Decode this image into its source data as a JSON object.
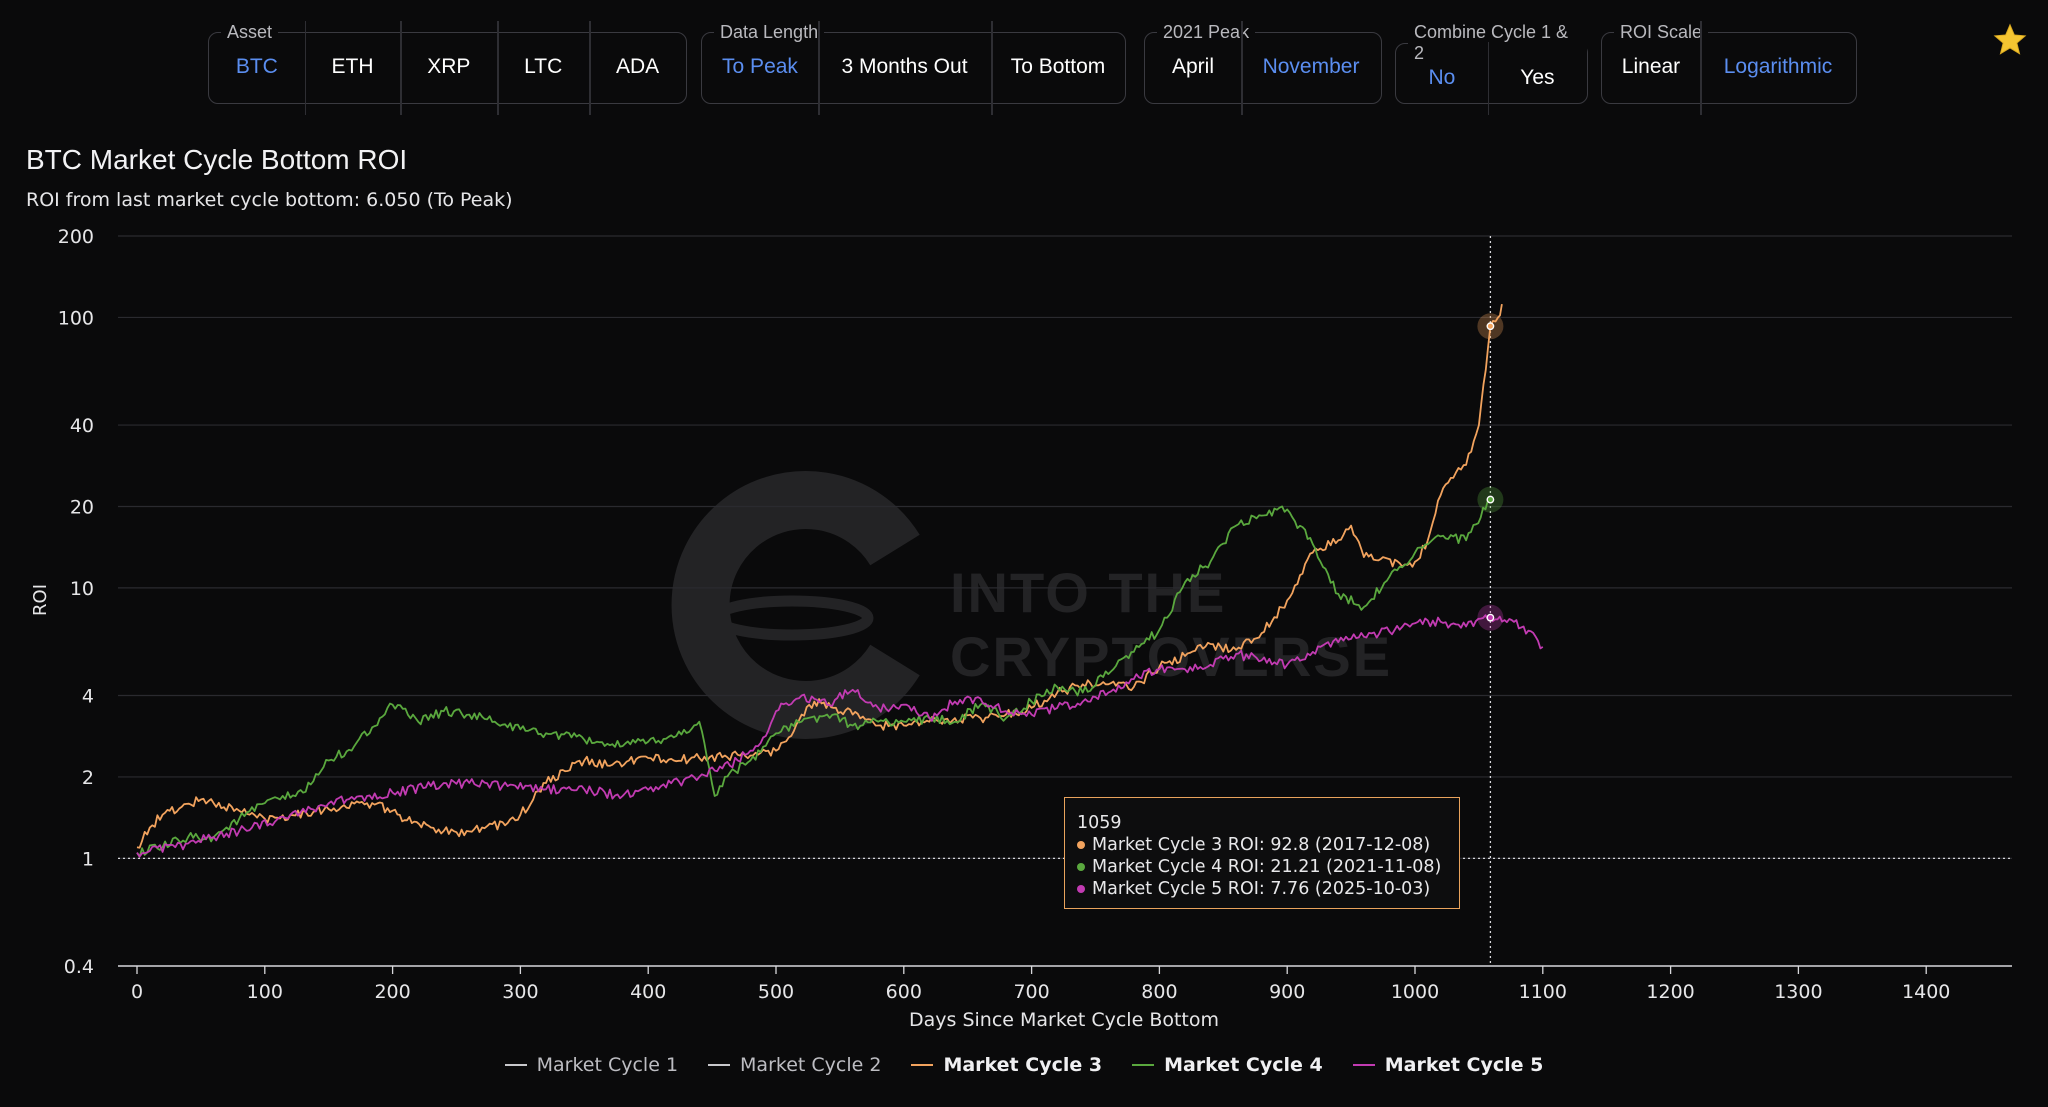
{
  "controls": {
    "groups": [
      {
        "legend": "Asset",
        "options": [
          "BTC",
          "ETH",
          "XRP",
          "LTC",
          "ADA"
        ],
        "selected": "BTC"
      },
      {
        "legend": "Data Length",
        "options": [
          "To Peak",
          "3 Months Out",
          "To Bottom"
        ],
        "selected": "To Peak"
      },
      {
        "legend": "2021 Peak",
        "options": [
          "April",
          "November"
        ],
        "selected": "November"
      },
      {
        "legend": "Combine Cycle 1 & 2",
        "options": [
          "No",
          "Yes"
        ],
        "selected": "No"
      },
      {
        "legend": "ROI Scale",
        "options": [
          "Linear",
          "Logarithmic"
        ],
        "selected": "Logarithmic"
      }
    ],
    "favorite_icon": "star-icon",
    "accent_color": "#5b8ef0"
  },
  "title": "BTC Market Cycle Bottom ROI",
  "subtitle": "ROI from last market cycle bottom: 6.050 (To Peak)",
  "watermark": "INTO THE CRYPTOVERSE",
  "tooltip": {
    "header": "1059",
    "rows": [
      {
        "text": "Market Cycle 3 ROI: 92.8 (2017-12-08)",
        "color": "#f2a35e"
      },
      {
        "text": "Market Cycle 4 ROI: 21.21 (2021-11-08)",
        "color": "#5aa83e"
      },
      {
        "text": "Market Cycle 5 ROI: 7.76 (2025-10-03)",
        "color": "#c23bb2"
      }
    ]
  },
  "chart_data": {
    "type": "line",
    "xlabel": "Days Since Market Cycle Bottom",
    "ylabel": "ROI",
    "yscale": "log",
    "xlim": [
      -10,
      1470
    ],
    "ylim": [
      0.4,
      200
    ],
    "xticks": [
      0,
      100,
      200,
      300,
      400,
      500,
      600,
      700,
      800,
      900,
      1000,
      1100,
      1200,
      1300,
      1400
    ],
    "yticks": [
      0.4,
      1,
      2,
      4,
      10,
      20,
      40,
      100,
      200
    ],
    "reference_line_y": 1,
    "crosshair_x": 1059,
    "grid": true,
    "legend_position": "bottom",
    "series": [
      {
        "name": "Market Cycle 1",
        "color": "#c8c8cc",
        "x": [],
        "y": [],
        "active": false
      },
      {
        "name": "Market Cycle 2",
        "color": "#c8c8cc",
        "x": [],
        "y": [],
        "active": false
      },
      {
        "name": "Market Cycle 3",
        "color": "#f2a35e",
        "active": true,
        "x": [
          0,
          10,
          20,
          35,
          50,
          60,
          80,
          100,
          120,
          140,
          160,
          180,
          200,
          215,
          230,
          250,
          270,
          290,
          300,
          310,
          320,
          335,
          350,
          370,
          385,
          400,
          420,
          440,
          460,
          480,
          500,
          510,
          520,
          530,
          545,
          560,
          580,
          600,
          620,
          640,
          660,
          680,
          700,
          720,
          740,
          760,
          780,
          800,
          820,
          840,
          860,
          880,
          900,
          920,
          940,
          950,
          960,
          975,
          990,
          1000,
          1010,
          1020,
          1030,
          1040,
          1050,
          1059,
          1065,
          1068
        ],
        "y": [
          1.1,
          1.3,
          1.45,
          1.55,
          1.65,
          1.6,
          1.5,
          1.4,
          1.45,
          1.5,
          1.55,
          1.6,
          1.5,
          1.35,
          1.3,
          1.25,
          1.3,
          1.35,
          1.45,
          1.65,
          1.9,
          2.1,
          2.3,
          2.2,
          2.3,
          2.35,
          2.3,
          2.35,
          2.4,
          2.4,
          2.5,
          2.8,
          3.4,
          3.8,
          3.6,
          3.4,
          3.1,
          3.1,
          3.2,
          3.3,
          3.3,
          3.4,
          3.6,
          4.1,
          4.4,
          4.4,
          4.3,
          5.1,
          5.6,
          6.2,
          5.9,
          6.8,
          9.0,
          13.5,
          15.0,
          17.0,
          13.0,
          13.0,
          12.0,
          12.5,
          15.0,
          22.0,
          25.5,
          28.5,
          40.0,
          92.8,
          100.0,
          112.0
        ]
      },
      {
        "name": "Market Cycle 4",
        "color": "#5aa83e",
        "active": true,
        "x": [
          0,
          20,
          40,
          60,
          80,
          100,
          130,
          150,
          170,
          190,
          200,
          220,
          240,
          260,
          280,
          300,
          320,
          340,
          360,
          380,
          400,
          420,
          440,
          452,
          460,
          480,
          500,
          520,
          540,
          560,
          580,
          600,
          620,
          640,
          660,
          680,
          700,
          720,
          740,
          760,
          780,
          800,
          820,
          840,
          860,
          880,
          900,
          920,
          940,
          960,
          980,
          1000,
          1020,
          1040,
          1059
        ],
        "y": [
          1.05,
          1.1,
          1.2,
          1.2,
          1.4,
          1.6,
          1.75,
          2.3,
          2.6,
          3.3,
          3.7,
          3.2,
          3.5,
          3.4,
          3.2,
          3.0,
          2.9,
          2.8,
          2.7,
          2.6,
          2.7,
          2.8,
          3.2,
          1.7,
          2.0,
          2.3,
          2.9,
          3.2,
          3.4,
          3.1,
          3.2,
          3.2,
          3.3,
          3.2,
          3.7,
          3.3,
          3.8,
          4.3,
          4.1,
          4.8,
          5.8,
          7.0,
          10.5,
          12.5,
          17.0,
          18.5,
          19.5,
          14.5,
          9.5,
          8.5,
          11.0,
          13.5,
          15.5,
          15.0,
          21.21
        ]
      },
      {
        "name": "Market Cycle 5",
        "color": "#c23bb2",
        "active": true,
        "x": [
          0,
          30,
          60,
          90,
          120,
          150,
          180,
          200,
          230,
          260,
          290,
          320,
          350,
          380,
          410,
          440,
          470,
          480,
          490,
          500,
          520,
          540,
          560,
          580,
          600,
          620,
          640,
          660,
          680,
          700,
          720,
          740,
          760,
          780,
          800,
          820,
          840,
          860,
          880,
          900,
          920,
          940,
          960,
          980,
          1000,
          1020,
          1040,
          1059,
          1070,
          1085,
          1100
        ],
        "y": [
          1.05,
          1.1,
          1.2,
          1.3,
          1.45,
          1.6,
          1.7,
          1.75,
          1.85,
          1.9,
          1.85,
          1.8,
          1.8,
          1.7,
          1.85,
          2.0,
          2.3,
          2.5,
          2.8,
          3.5,
          4.0,
          3.7,
          4.2,
          3.6,
          3.7,
          3.3,
          3.8,
          3.9,
          3.5,
          3.4,
          3.6,
          3.8,
          4.1,
          4.6,
          5.0,
          5.0,
          5.2,
          5.7,
          5.4,
          5.2,
          5.8,
          6.3,
          6.6,
          6.9,
          7.4,
          7.5,
          7.2,
          7.76,
          7.6,
          7.2,
          6.05
        ]
      }
    ]
  }
}
